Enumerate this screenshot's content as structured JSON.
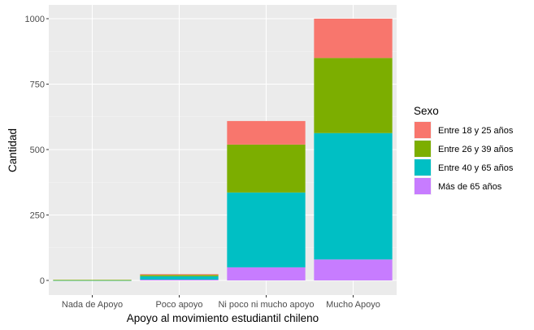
{
  "chart_data": {
    "type": "bar",
    "stacked": true,
    "title": "",
    "xlabel": "Apoyo al movimiento estudiantil chileno",
    "ylabel": "Cantidad",
    "categories": [
      "Nada de Apoyo",
      "Poco apoyo",
      "Ni poco ni mucho apoyo",
      "Mucho Apoyo"
    ],
    "ylim": [
      0,
      1000
    ],
    "yticks": [
      0,
      250,
      500,
      750,
      1000
    ],
    "grid": true,
    "legend": {
      "title": "Sexo",
      "position": "right"
    },
    "series": [
      {
        "name": "Entre 18 y 25 años",
        "color": "#F8766D",
        "values": [
          0,
          3,
          90,
          150
        ]
      },
      {
        "name": "Entre 26 y 39 años",
        "color": "#7CAE00",
        "values": [
          1,
          5,
          183,
          287
        ]
      },
      {
        "name": "Entre 40 y 65 años",
        "color": "#00BFC4",
        "values": [
          1,
          13,
          286,
          483
        ]
      },
      {
        "name": "Más de 65 años",
        "color": "#C77CFF",
        "values": [
          0,
          3,
          50,
          80
        ]
      }
    ]
  }
}
